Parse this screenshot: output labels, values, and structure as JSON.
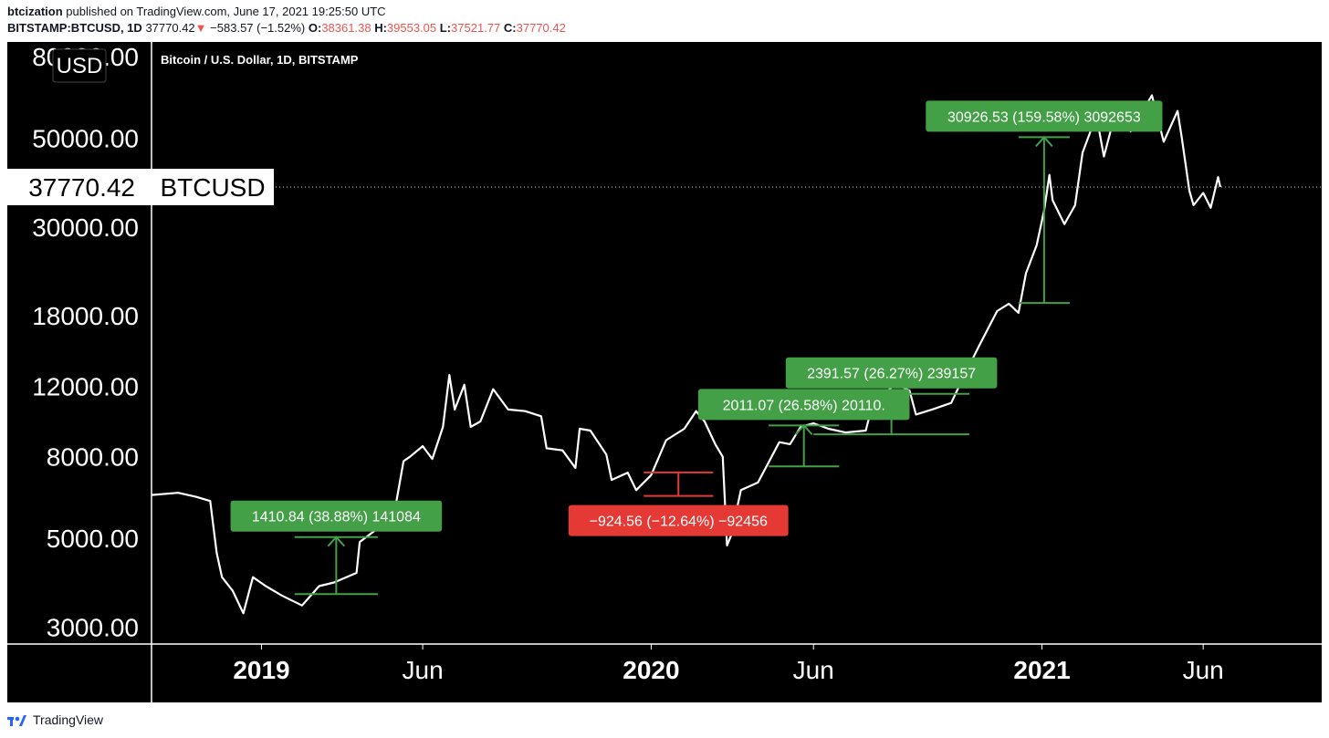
{
  "header": {
    "author": "btcization",
    "published_text": "published on TradingView.com, June 17, 2021 19:25:50 UTC",
    "symbol": "BITSTAMP:BTCUSD, 1D",
    "last": "37770.42",
    "down_arrow": "▼",
    "change": "−583.57 (−1.52%)",
    "o_label": "O:",
    "o_value": "38361.38",
    "h_label": "H:",
    "h_value": "39553.05",
    "l_label": "L:",
    "l_value": "37521.77",
    "c_label": "C:",
    "c_value": "37770.42"
  },
  "chart_title": "Bitcoin / U.S. Dollar, 1D, BITSTAMP",
  "currency_label": "USD",
  "price_tag": {
    "value": "37770.42",
    "symbol": "BTCUSD"
  },
  "footer": {
    "brand": "TradingView"
  },
  "colors": {
    "background": "#000000",
    "line": "#ffffff",
    "up": "#43a047",
    "down": "#e53935",
    "text": "#ffffff"
  },
  "chart_data": {
    "type": "line",
    "title": "Bitcoin / U.S. Dollar, 1D, BITSTAMP",
    "y_scale": "log",
    "ylim": [
      2900,
      80000
    ],
    "xlim": [
      "2018-09-20",
      "2021-09-20"
    ],
    "y_ticks": [
      {
        "value": 80000,
        "label": "80000.00"
      },
      {
        "value": 50000,
        "label": "50000.00"
      },
      {
        "value": 30000,
        "label": "30000.00"
      },
      {
        "value": 18000,
        "label": "18000.00"
      },
      {
        "value": 12000,
        "label": "12000.00"
      },
      {
        "value": 8000,
        "label": "8000.00"
      },
      {
        "value": 5000,
        "label": "5000.00"
      },
      {
        "value": 3000,
        "label": "3000.00"
      }
    ],
    "x_ticks": [
      {
        "date": "2019-01-01",
        "label": "2019",
        "bold": true
      },
      {
        "date": "2019-06-01",
        "label": "Jun",
        "bold": false
      },
      {
        "date": "2020-01-01",
        "label": "2020",
        "bold": true
      },
      {
        "date": "2020-06-01",
        "label": "Jun",
        "bold": false
      },
      {
        "date": "2021-01-01",
        "label": "2021",
        "bold": true
      },
      {
        "date": "2021-06-01",
        "label": "Jun",
        "bold": false
      }
    ],
    "last_price": 37770.42,
    "series": [
      {
        "points": [
          [
            "2018-09-20",
            6420
          ],
          [
            "2018-10-15",
            6500
          ],
          [
            "2018-11-01",
            6350
          ],
          [
            "2018-11-14",
            6200
          ],
          [
            "2018-11-20",
            4600
          ],
          [
            "2018-11-25",
            4000
          ],
          [
            "2018-12-05",
            3700
          ],
          [
            "2018-12-15",
            3250
          ],
          [
            "2018-12-24",
            4000
          ],
          [
            "2019-01-05",
            3800
          ],
          [
            "2019-01-20",
            3600
          ],
          [
            "2019-02-08",
            3400
          ],
          [
            "2019-02-24",
            3800
          ],
          [
            "2019-03-10",
            3880
          ],
          [
            "2019-03-31",
            4100
          ],
          [
            "2019-04-03",
            4900
          ],
          [
            "2019-04-20",
            5300
          ],
          [
            "2019-05-05",
            5700
          ],
          [
            "2019-05-14",
            7800
          ],
          [
            "2019-05-20",
            8000
          ],
          [
            "2019-06-01",
            8500
          ],
          [
            "2019-06-10",
            7900
          ],
          [
            "2019-06-20",
            9500
          ],
          [
            "2019-06-26",
            12800
          ],
          [
            "2019-07-01",
            10500
          ],
          [
            "2019-07-10",
            12100
          ],
          [
            "2019-07-16",
            9500
          ],
          [
            "2019-07-25",
            9800
          ],
          [
            "2019-08-06",
            11800
          ],
          [
            "2019-08-20",
            10500
          ],
          [
            "2019-09-05",
            10400
          ],
          [
            "2019-09-20",
            10100
          ],
          [
            "2019-09-25",
            8400
          ],
          [
            "2019-10-10",
            8300
          ],
          [
            "2019-10-22",
            7500
          ],
          [
            "2019-10-26",
            9400
          ],
          [
            "2019-11-05",
            9300
          ],
          [
            "2019-11-20",
            8100
          ],
          [
            "2019-11-25",
            7000
          ],
          [
            "2019-12-10",
            7300
          ],
          [
            "2019-12-18",
            6600
          ],
          [
            "2020-01-01",
            7200
          ],
          [
            "2020-01-15",
            8800
          ],
          [
            "2020-02-01",
            9400
          ],
          [
            "2020-02-12",
            10400
          ],
          [
            "2020-02-20",
            9800
          ],
          [
            "2020-03-01",
            8600
          ],
          [
            "2020-03-08",
            8000
          ],
          [
            "2020-03-12",
            4800
          ],
          [
            "2020-03-16",
            5100
          ],
          [
            "2020-03-25",
            6600
          ],
          [
            "2020-04-10",
            6900
          ],
          [
            "2020-04-30",
            8700
          ],
          [
            "2020-05-10",
            8600
          ],
          [
            "2020-05-20",
            9500
          ],
          [
            "2020-06-01",
            9700
          ],
          [
            "2020-06-15",
            9400
          ],
          [
            "2020-07-01",
            9200
          ],
          [
            "2020-07-20",
            9300
          ],
          [
            "2020-07-27",
            11000
          ],
          [
            "2020-08-02",
            11200
          ],
          [
            "2020-08-17",
            12200
          ],
          [
            "2020-08-30",
            11700
          ],
          [
            "2020-09-05",
            10200
          ],
          [
            "2020-09-20",
            10500
          ],
          [
            "2020-10-08",
            10900
          ],
          [
            "2020-10-21",
            12900
          ],
          [
            "2020-11-05",
            15500
          ],
          [
            "2020-11-20",
            18500
          ],
          [
            "2020-12-01",
            19300
          ],
          [
            "2020-12-10",
            18300
          ],
          [
            "2020-12-17",
            23000
          ],
          [
            "2020-12-27",
            27000
          ],
          [
            "2021-01-03",
            33000
          ],
          [
            "2021-01-08",
            40500
          ],
          [
            "2021-01-11",
            35000
          ],
          [
            "2021-01-22",
            30500
          ],
          [
            "2021-02-01",
            34000
          ],
          [
            "2021-02-08",
            46000
          ],
          [
            "2021-02-21",
            57000
          ],
          [
            "2021-02-28",
            45000
          ],
          [
            "2021-03-13",
            61000
          ],
          [
            "2021-03-25",
            52000
          ],
          [
            "2021-04-14",
            64000
          ],
          [
            "2021-04-25",
            49000
          ],
          [
            "2021-05-08",
            58500
          ],
          [
            "2021-05-12",
            50000
          ],
          [
            "2021-05-19",
            37000
          ],
          [
            "2021-05-23",
            34000
          ],
          [
            "2021-06-01",
            36500
          ],
          [
            "2021-06-08",
            33500
          ],
          [
            "2021-06-15",
            40000
          ],
          [
            "2021-06-17",
            37770
          ]
        ]
      }
    ],
    "annotations": [
      {
        "label": "1410.84 (38.88%) 141084",
        "color": "up",
        "from_date": "2019-02-01",
        "to_date": "2019-04-20",
        "base_price": 3630,
        "target_price": 5040
      },
      {
        "label": "−924.56 (−12.64%) −92456",
        "color": "down",
        "from_date": "2019-12-25",
        "to_date": "2020-02-28",
        "base_price": 7310,
        "target_price": 6385
      },
      {
        "label": "2011.07 (26.58%) 20110.",
        "color": "up",
        "from_date": "2020-04-20",
        "to_date": "2020-06-25",
        "base_price": 7570,
        "target_price": 9580
      },
      {
        "label": "2391.57 (26.27%) 239157",
        "color": "up",
        "from_date": "2020-06-01",
        "to_date": "2020-10-25",
        "base_price": 9100,
        "target_price": 11490
      },
      {
        "label": "30926.53 (159.58%) 3092653",
        "color": "up",
        "from_date": "2020-12-10",
        "to_date": "2021-01-27",
        "base_price": 19380,
        "target_price": 50300
      }
    ]
  }
}
